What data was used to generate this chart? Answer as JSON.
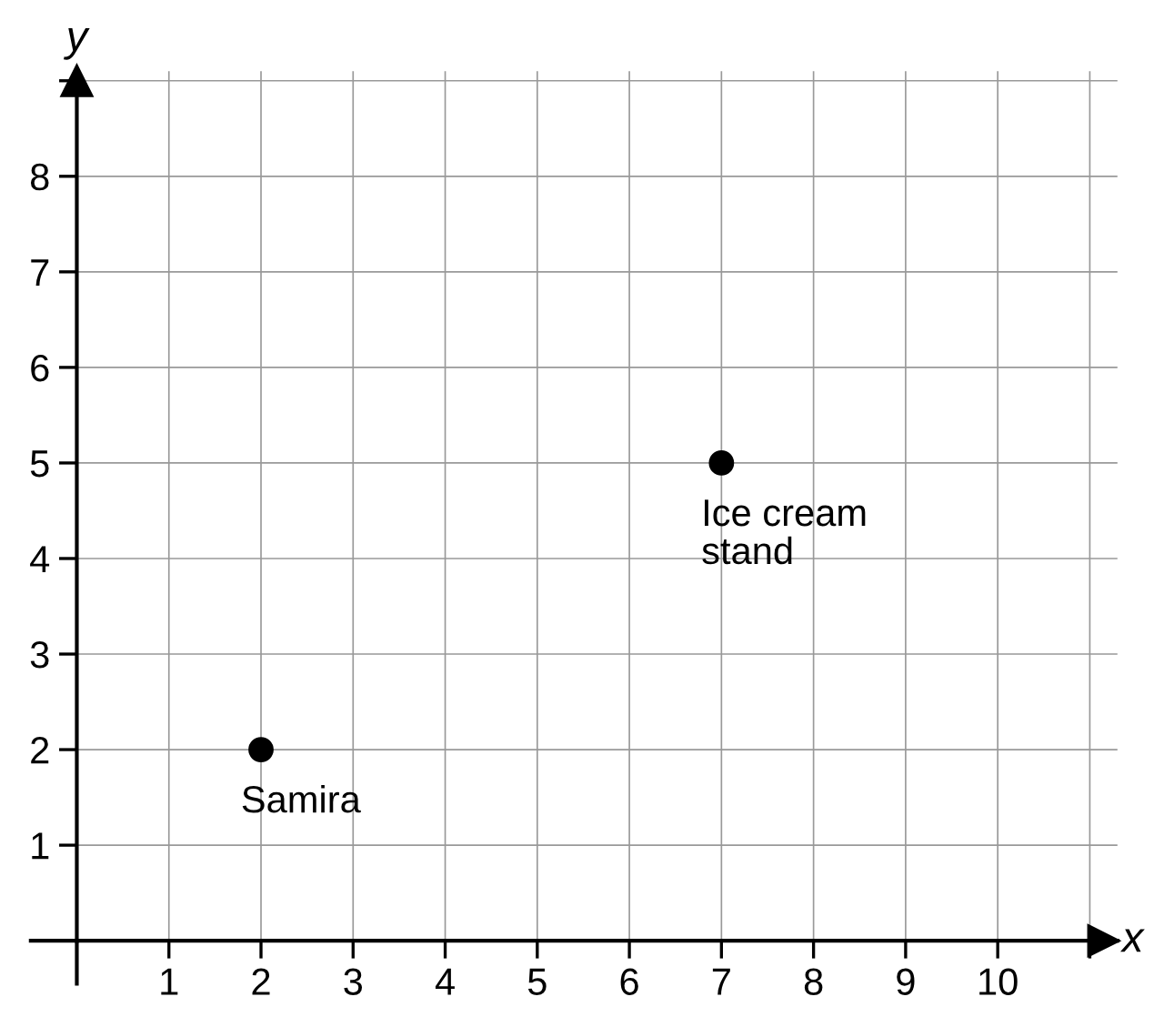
{
  "chart_data": {
    "type": "scatter",
    "xlabel": "x",
    "ylabel": "y",
    "series": [
      {
        "x": [
          2,
          7
        ],
        "values": [
          2,
          5
        ],
        "color": "#000000"
      }
    ],
    "marker": "circle",
    "xlim": [
      0,
      11.3
    ],
    "ylim": [
      0,
      9.1
    ],
    "xticks": [
      1,
      2,
      3,
      4,
      5,
      6,
      7,
      8,
      9,
      10,
      {
        "value": 11,
        "label": null
      }
    ],
    "yticks": [
      1,
      2,
      3,
      4,
      5,
      6,
      7,
      8,
      {
        "value": 9,
        "label": null
      }
    ],
    "grid": true,
    "annotations": [
      {
        "text": "Samira",
        "x": 2,
        "y": 2
      },
      {
        "text": "Ice cream\nstand",
        "x": 7,
        "y": 5
      }
    ]
  }
}
